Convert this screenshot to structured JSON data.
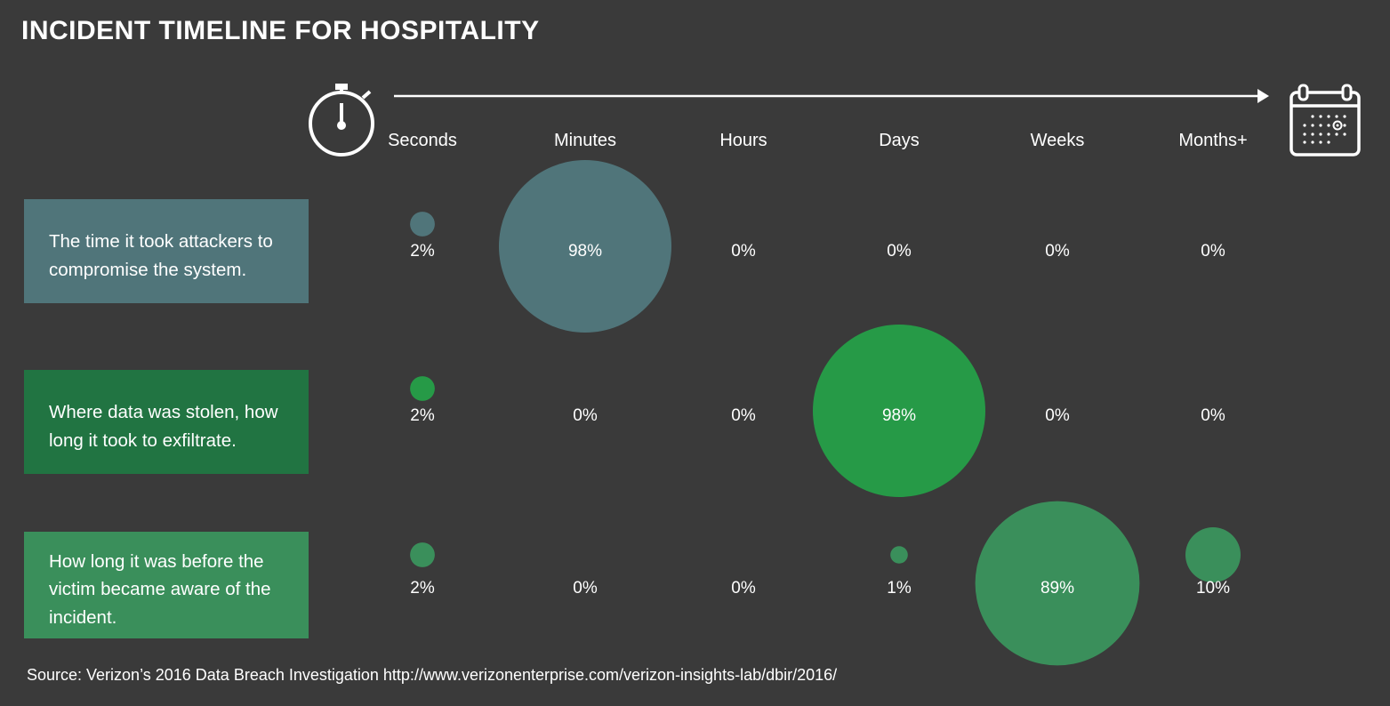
{
  "chart_data": {
    "type": "bubble-matrix",
    "title": "INCIDENT TIMELINE FOR HOSPITALITY",
    "columns": [
      "Seconds",
      "Minutes",
      "Hours",
      "Days",
      "Weeks",
      "Months+"
    ],
    "rows": [
      {
        "label": "The time it took attackers to compromise the system.",
        "color": "#50757a",
        "values": [
          2,
          98,
          0,
          0,
          0,
          0
        ],
        "value_labels": [
          "2%",
          "98%",
          "0%",
          "0%",
          "0%",
          "0%"
        ]
      },
      {
        "label": "Where data was stolen, how long it took to exfiltrate.",
        "color": "#269a47",
        "values": [
          2,
          0,
          0,
          98,
          0,
          0
        ],
        "value_labels": [
          "2%",
          "0%",
          "0%",
          "98%",
          "0%",
          "0%"
        ]
      },
      {
        "label": "How long it was before the victim became aware of the incident.",
        "color": "#3a8f5b",
        "values": [
          2,
          0,
          0,
          1,
          89,
          10
        ],
        "value_labels": [
          "2%",
          "0%",
          "0%",
          "1%",
          "89%",
          "10%"
        ]
      }
    ],
    "source": "Source: Verizon’s 2016 Data Breach Investigation http://www.verizonenterprise.com/verizon-insights-lab/dbir/2016/"
  },
  "icons": {
    "start": "stopwatch-icon",
    "end": "calendar-icon",
    "axis": "timeline-arrow"
  },
  "colors": {
    "background": "#3a3a3a",
    "text": "#ffffff"
  }
}
